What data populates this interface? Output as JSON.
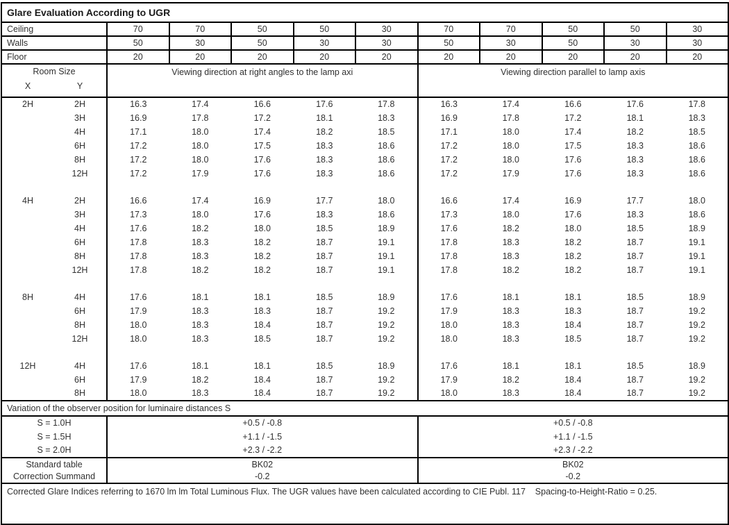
{
  "title": "Glare Evaluation According to UGR",
  "surfaces": {
    "rows": [
      {
        "label": "Ceiling",
        "values": [
          "70",
          "70",
          "50",
          "50",
          "30",
          "70",
          "70",
          "50",
          "50",
          "30"
        ]
      },
      {
        "label": "Walls",
        "values": [
          "50",
          "30",
          "50",
          "30",
          "30",
          "50",
          "30",
          "50",
          "30",
          "30"
        ]
      },
      {
        "label": "Floor",
        "values": [
          "20",
          "20",
          "20",
          "20",
          "20",
          "20",
          "20",
          "20",
          "20",
          "20"
        ]
      }
    ]
  },
  "header": {
    "room_size": "Room Size",
    "x": "X",
    "y": "Y",
    "left_title": "Viewing direction at right angles to the lamp axi",
    "right_title": "Viewing direction parallel to lamp axis"
  },
  "body": {
    "groups": [
      {
        "x": "2H",
        "rows": [
          {
            "y": "2H",
            "left": [
              "16.3",
              "17.4",
              "16.6",
              "17.6",
              "17.8"
            ],
            "right": [
              "16.3",
              "17.4",
              "16.6",
              "17.6",
              "17.8"
            ]
          },
          {
            "y": "3H",
            "left": [
              "16.9",
              "17.8",
              "17.2",
              "18.1",
              "18.3"
            ],
            "right": [
              "16.9",
              "17.8",
              "17.2",
              "18.1",
              "18.3"
            ]
          },
          {
            "y": "4H",
            "left": [
              "17.1",
              "18.0",
              "17.4",
              "18.2",
              "18.5"
            ],
            "right": [
              "17.1",
              "18.0",
              "17.4",
              "18.2",
              "18.5"
            ]
          },
          {
            "y": "6H",
            "left": [
              "17.2",
              "18.0",
              "17.5",
              "18.3",
              "18.6"
            ],
            "right": [
              "17.2",
              "18.0",
              "17.5",
              "18.3",
              "18.6"
            ]
          },
          {
            "y": "8H",
            "left": [
              "17.2",
              "18.0",
              "17.6",
              "18.3",
              "18.6"
            ],
            "right": [
              "17.2",
              "18.0",
              "17.6",
              "18.3",
              "18.6"
            ]
          },
          {
            "y": "12H",
            "left": [
              "17.2",
              "17.9",
              "17.6",
              "18.3",
              "18.6"
            ],
            "right": [
              "17.2",
              "17.9",
              "17.6",
              "18.3",
              "18.6"
            ]
          }
        ]
      },
      {
        "x": "4H",
        "rows": [
          {
            "y": "2H",
            "left": [
              "16.6",
              "17.4",
              "16.9",
              "17.7",
              "18.0"
            ],
            "right": [
              "16.6",
              "17.4",
              "16.9",
              "17.7",
              "18.0"
            ]
          },
          {
            "y": "3H",
            "left": [
              "17.3",
              "18.0",
              "17.6",
              "18.3",
              "18.6"
            ],
            "right": [
              "17.3",
              "18.0",
              "17.6",
              "18.3",
              "18.6"
            ]
          },
          {
            "y": "4H",
            "left": [
              "17.6",
              "18.2",
              "18.0",
              "18.5",
              "18.9"
            ],
            "right": [
              "17.6",
              "18.2",
              "18.0",
              "18.5",
              "18.9"
            ]
          },
          {
            "y": "6H",
            "left": [
              "17.8",
              "18.3",
              "18.2",
              "18.7",
              "19.1"
            ],
            "right": [
              "17.8",
              "18.3",
              "18.2",
              "18.7",
              "19.1"
            ]
          },
          {
            "y": "8H",
            "left": [
              "17.8",
              "18.3",
              "18.2",
              "18.7",
              "19.1"
            ],
            "right": [
              "17.8",
              "18.3",
              "18.2",
              "18.7",
              "19.1"
            ]
          },
          {
            "y": "12H",
            "left": [
              "17.8",
              "18.2",
              "18.2",
              "18.7",
              "19.1"
            ],
            "right": [
              "17.8",
              "18.2",
              "18.2",
              "18.7",
              "19.1"
            ]
          }
        ]
      },
      {
        "x": "8H",
        "rows": [
          {
            "y": "4H",
            "left": [
              "17.6",
              "18.1",
              "18.1",
              "18.5",
              "18.9"
            ],
            "right": [
              "17.6",
              "18.1",
              "18.1",
              "18.5",
              "18.9"
            ]
          },
          {
            "y": "6H",
            "left": [
              "17.9",
              "18.3",
              "18.3",
              "18.7",
              "19.2"
            ],
            "right": [
              "17.9",
              "18.3",
              "18.3",
              "18.7",
              "19.2"
            ]
          },
          {
            "y": "8H",
            "left": [
              "18.0",
              "18.3",
              "18.4",
              "18.7",
              "19.2"
            ],
            "right": [
              "18.0",
              "18.3",
              "18.4",
              "18.7",
              "19.2"
            ]
          },
          {
            "y": "12H",
            "left": [
              "18.0",
              "18.3",
              "18.5",
              "18.7",
              "19.2"
            ],
            "right": [
              "18.0",
              "18.3",
              "18.5",
              "18.7",
              "19.2"
            ]
          }
        ]
      },
      {
        "x": "12H",
        "rows": [
          {
            "y": "4H",
            "left": [
              "17.6",
              "18.1",
              "18.1",
              "18.5",
              "18.9"
            ],
            "right": [
              "17.6",
              "18.1",
              "18.1",
              "18.5",
              "18.9"
            ]
          },
          {
            "y": "6H",
            "left": [
              "17.9",
              "18.2",
              "18.4",
              "18.7",
              "19.2"
            ],
            "right": [
              "17.9",
              "18.2",
              "18.4",
              "18.7",
              "19.2"
            ]
          },
          {
            "y": "8H",
            "left": [
              "18.0",
              "18.3",
              "18.4",
              "18.7",
              "19.2"
            ],
            "right": [
              "18.0",
              "18.3",
              "18.4",
              "18.7",
              "19.2"
            ]
          }
        ]
      }
    ]
  },
  "variation": {
    "title": "Variation of the observer position for luminaire distances S",
    "rows": [
      {
        "label": "S = 1.0H",
        "left": "+0.5 / -0.8",
        "right": "+0.5 / -0.8"
      },
      {
        "label": "S = 1.5H",
        "left": "+1.1 / -1.5",
        "right": "+1.1 / -1.5"
      },
      {
        "label": "S = 2.0H",
        "left": "+2.3 / -2.2",
        "right": "+2.3 / -2.2"
      }
    ]
  },
  "summary": {
    "rows": [
      {
        "label": "Standard table",
        "left": "BK02",
        "right": "BK02"
      },
      {
        "label": "Correction Summand",
        "left": "-0.2",
        "right": "-0.2"
      }
    ]
  },
  "footer": {
    "text": "Corrected Glare Indices referring to 1670 lm lm Total Luminous Flux. The UGR values have been calculated according to CIE Publ. 117    Spacing-to-Height-Ratio = 0.25."
  }
}
